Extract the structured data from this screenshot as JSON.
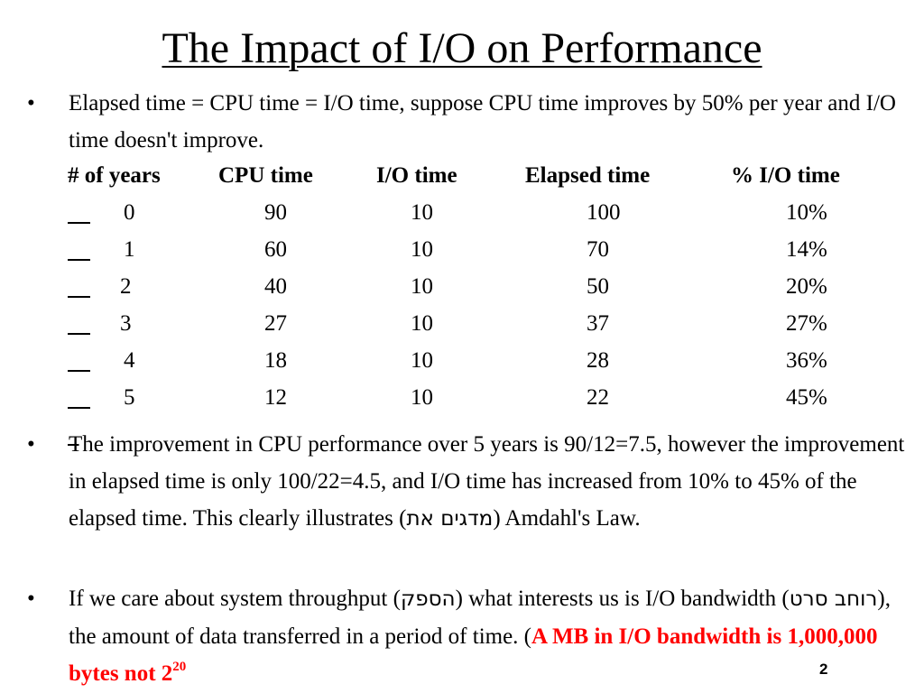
{
  "title": "The Impact of I/O on Performance",
  "bullet_glyph": "•",
  "bullets": [
    {
      "text": "Elapsed time = CPU time = I/O time, suppose CPU time improves by 50% per year and I/O time doesn't improve."
    },
    {
      "text_before": "The improvement in CPU performance over 5 years is 90/12=7.5, however the improvement in elapsed time is only 100/22=4.5, and I/O time has increased from 10% to 45% of the elapsed time. This clearly illustrates (",
      "hebrew": "מדגים את",
      "text_after": ") Amdahl's Law."
    },
    {
      "text_1": "If we care about system throughput (",
      "hebrew_1": "הספק",
      "text_2": ") what interests us is I/O bandwidth (",
      "hebrew_2": "רוחב סרט",
      "text_3": "), the amount of data transferred in a period of time. (",
      "emphasis": "A MB in I/O bandwidth is 1,000,000 bytes not 2",
      "emphasis_exp": "20"
    }
  ],
  "table": {
    "headers": [
      "# of years",
      "CPU time",
      "I/O time",
      "Elapsed time",
      "% I/O time"
    ],
    "rows": [
      [
        "0",
        "90",
        "10",
        "100",
        "10%"
      ],
      [
        "1",
        "60",
        "10",
        "70",
        "14%"
      ],
      [
        "2",
        "40",
        "10",
        "50",
        "20%"
      ],
      [
        "3",
        "27",
        "10",
        "37",
        "27%"
      ],
      [
        "4",
        "18",
        "10",
        "28",
        "36%"
      ],
      [
        "5",
        "12",
        "10",
        "22",
        "45%"
      ]
    ]
  },
  "slide_number": "2"
}
